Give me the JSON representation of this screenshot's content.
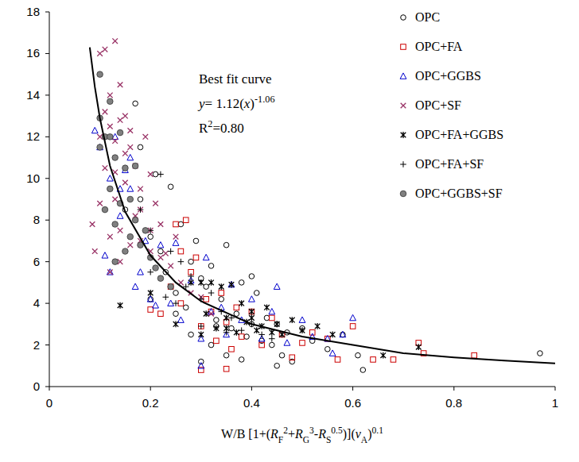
{
  "chart_data": {
    "type": "scatter",
    "x_label": [
      {
        "text": "W/B [1+("
      },
      {
        "text": "R",
        "style": "italic"
      },
      {
        "text": "F",
        "style": "sub"
      },
      {
        "text": "2",
        "style": "sup"
      },
      {
        "text": "+"
      },
      {
        "text": "R",
        "style": "italic"
      },
      {
        "text": "G",
        "style": "sub"
      },
      {
        "text": "3",
        "style": "sup"
      },
      {
        "text": "-"
      },
      {
        "text": "R",
        "style": "italic"
      },
      {
        "text": "S",
        "style": "sub"
      },
      {
        "text": "0.5",
        "style": "sup"
      },
      {
        "text": ")]("
      },
      {
        "text": "v",
        "style": "italic"
      },
      {
        "text": "A",
        "style": "sub"
      },
      {
        "text": ")"
      },
      {
        "text": "0.1",
        "style": "sup"
      }
    ],
    "annotations": [
      [
        {
          "text": "Best fit curve"
        }
      ],
      [
        {
          "text": "y",
          "style": "italic"
        },
        {
          "text": "= 1.12("
        },
        {
          "text": "x",
          "style": "italic"
        },
        {
          "text": ")"
        },
        {
          "text": "-1.06",
          "style": "sup"
        }
      ],
      [
        {
          "text": "R"
        },
        {
          "text": "2",
          "style": "sup"
        },
        {
          "text": "=0.80"
        }
      ]
    ],
    "xlim": [
      0,
      1
    ],
    "xticks": [
      0,
      0.2,
      0.4,
      0.6,
      0.8,
      1
    ],
    "ylim": [
      0,
      18
    ],
    "yticks": [
      0,
      2,
      4,
      6,
      8,
      10,
      12,
      14,
      16,
      18
    ],
    "grid": false,
    "legend": "top-right",
    "series": [
      {
        "name": "OPC",
        "color": "#000000",
        "marker": "circle",
        "x": [
          0.15,
          0.17,
          0.18,
          0.2,
          0.21,
          0.22,
          0.23,
          0.24,
          0.25,
          0.26,
          0.27,
          0.28,
          0.29,
          0.3,
          0.31,
          0.32,
          0.33,
          0.34,
          0.35,
          0.36,
          0.37,
          0.38,
          0.39,
          0.4,
          0.41,
          0.42,
          0.43,
          0.44,
          0.45,
          0.46,
          0.47,
          0.48,
          0.5,
          0.52,
          0.55,
          0.58,
          0.61,
          0.62,
          0.97,
          0.3,
          0.32,
          0.35,
          0.38,
          0.2,
          0.18,
          0.25,
          0.28,
          0.4,
          0.45,
          0.33
        ],
        "values": [
          8.5,
          13.6,
          9.0,
          7.2,
          10.2,
          6.5,
          5.5,
          9.6,
          4.5,
          7.8,
          3.8,
          6.0,
          7.0,
          5.2,
          4.8,
          5.8,
          3.2,
          4.2,
          6.8,
          2.8,
          3.5,
          5.0,
          2.4,
          3.0,
          4.5,
          2.2,
          3.3,
          2.0,
          3.0,
          1.5,
          2.6,
          1.2,
          2.8,
          2.2,
          1.8,
          2.5,
          1.5,
          0.8,
          1.6,
          1.2,
          2.0,
          1.5,
          1.3,
          4.2,
          11.5,
          3.5,
          2.5,
          5.3,
          1.0,
          2.9
        ]
      },
      {
        "name": "OPC+FA",
        "color": "#cc0000",
        "marker": "square",
        "x": [
          0.2,
          0.22,
          0.24,
          0.25,
          0.26,
          0.27,
          0.28,
          0.3,
          0.31,
          0.32,
          0.33,
          0.34,
          0.35,
          0.36,
          0.37,
          0.38,
          0.4,
          0.42,
          0.44,
          0.46,
          0.48,
          0.5,
          0.52,
          0.55,
          0.57,
          0.6,
          0.64,
          0.68,
          0.73,
          0.74,
          0.84,
          0.29,
          0.3,
          0.26,
          0.35
        ],
        "values": [
          3.7,
          3.5,
          4.8,
          7.8,
          6.5,
          8.0,
          5.5,
          0.8,
          4.2,
          3.6,
          2.2,
          4.5,
          3.1,
          1.8,
          3.8,
          2.4,
          3.6,
          2.0,
          3.3,
          2.5,
          1.4,
          2.1,
          2.6,
          2.3,
          1.3,
          2.9,
          1.3,
          1.3,
          2.1,
          1.6,
          1.5,
          6.2,
          2.9,
          4.0,
          0.85
        ]
      },
      {
        "name": "OPC+GGBS",
        "color": "#0000cc",
        "marker": "triangle",
        "x": [
          0.09,
          0.1,
          0.11,
          0.12,
          0.13,
          0.14,
          0.15,
          0.16,
          0.17,
          0.18,
          0.19,
          0.2,
          0.21,
          0.22,
          0.24,
          0.25,
          0.26,
          0.28,
          0.3,
          0.31,
          0.32,
          0.34,
          0.35,
          0.36,
          0.38,
          0.4,
          0.42,
          0.44,
          0.45,
          0.47,
          0.5,
          0.52,
          0.55,
          0.56,
          0.58,
          0.6,
          0.12,
          0.14,
          0.16,
          0.3
        ],
        "values": [
          12.3,
          11.5,
          6.3,
          10.0,
          12.0,
          8.2,
          10.4,
          9.5,
          4.8,
          5.5,
          7.0,
          4.2,
          3.9,
          6.8,
          4.0,
          6.9,
          3.2,
          5.1,
          1.0,
          6.2,
          3.6,
          3.8,
          2.5,
          4.9,
          3.2,
          4.2,
          2.3,
          3.6,
          4.8,
          2.1,
          3.2,
          2.4,
          2.3,
          1.6,
          2.5,
          3.3,
          5.5,
          9.5,
          11.0,
          2.3
        ]
      },
      {
        "name": "OPC+SF",
        "color": "#993366",
        "marker": "x",
        "x": [
          0.085,
          0.09,
          0.1,
          0.1,
          0.11,
          0.11,
          0.12,
          0.12,
          0.12,
          0.13,
          0.13,
          0.13,
          0.14,
          0.14,
          0.14,
          0.15,
          0.15,
          0.16,
          0.16,
          0.17,
          0.17,
          0.18,
          0.18,
          0.19,
          0.2,
          0.2,
          0.21,
          0.22,
          0.23,
          0.24,
          0.25,
          0.26,
          0.28,
          0.3,
          0.32,
          0.1,
          0.11,
          0.12,
          0.13,
          0.14,
          0.15,
          0.16,
          0.18,
          0.2,
          0.22
        ],
        "values": [
          7.8,
          6.5,
          16.0,
          8.8,
          16.2,
          10.5,
          14.0,
          5.5,
          12.5,
          16.6,
          9.0,
          11.8,
          14.5,
          7.5,
          12.8,
          13.0,
          9.8,
          11.5,
          6.8,
          10.6,
          8.2,
          9.5,
          7.0,
          12.0,
          10.2,
          6.5,
          8.8,
          7.8,
          6.4,
          5.8,
          7.2,
          5.0,
          4.5,
          4.3,
          3.5,
          12.0,
          13.2,
          7.2,
          10.3,
          6.0,
          11.2,
          12.3,
          8.5,
          7.5,
          6.2
        ]
      },
      {
        "name": "OPC+FA+GGBS",
        "color": "#000000",
        "marker": "asterisk",
        "x": [
          0.14,
          0.2,
          0.25,
          0.28,
          0.3,
          0.31,
          0.32,
          0.33,
          0.34,
          0.35,
          0.36,
          0.37,
          0.38,
          0.39,
          0.4,
          0.41,
          0.42,
          0.43,
          0.44,
          0.45,
          0.46,
          0.48,
          0.5,
          0.53,
          0.56,
          0.66,
          0.73,
          0.3,
          0.35,
          0.4
        ],
        "values": [
          3.9,
          4.5,
          3.0,
          5.0,
          5.0,
          3.5,
          5.0,
          2.8,
          4.8,
          3.3,
          4.9,
          2.6,
          4.0,
          3.1,
          3.6,
          2.7,
          2.9,
          3.8,
          2.6,
          3.0,
          2.5,
          3.2,
          2.7,
          2.9,
          2.5,
          1.5,
          1.9,
          2.5,
          2.8,
          3.3
        ]
      },
      {
        "name": "OPC+FA+SF",
        "color": "#000000",
        "marker": "plus",
        "x": [
          0.18,
          0.2,
          0.22,
          0.24,
          0.26,
          0.28,
          0.3,
          0.32,
          0.34,
          0.36,
          0.38,
          0.4,
          0.42,
          0.44,
          0.2,
          0.23,
          0.25,
          0.3,
          0.27,
          0.35
        ],
        "values": [
          8.5,
          7.5,
          10.2,
          6.5,
          6.0,
          5.3,
          4.2,
          4.5,
          3.6,
          3.3,
          2.7,
          3.0,
          2.5,
          2.3,
          5.5,
          4.3,
          4.0,
          2.9,
          4.8,
          2.6
        ]
      },
      {
        "name": "OPC+GGBS+SF",
        "color": "#808080",
        "marker": "filled_circle",
        "x": [
          0.1,
          0.1,
          0.11,
          0.11,
          0.12,
          0.12,
          0.13,
          0.13,
          0.14,
          0.14,
          0.15,
          0.15,
          0.16,
          0.16,
          0.17,
          0.18,
          0.19,
          0.2,
          0.21,
          0.22,
          0.24,
          0.12,
          0.1,
          0.13,
          0.17
        ],
        "values": [
          15.0,
          12.9,
          12.0,
          8.5,
          13.7,
          9.5,
          11.0,
          7.8,
          12.2,
          8.8,
          10.5,
          6.5,
          9.0,
          7.2,
          8.0,
          6.8,
          7.5,
          6.2,
          5.7,
          5.2,
          4.8,
          12.0,
          11.5,
          6.0,
          10.6
        ]
      },
      {
        "type": "line",
        "color": "#000000",
        "line_style": "solid",
        "x": [
          0.08,
          0.09,
          0.1,
          0.12,
          0.15,
          0.2,
          0.25,
          0.3,
          0.4,
          0.5,
          0.6,
          0.7,
          0.8,
          0.9,
          1.0
        ],
        "values": [
          16.3,
          14.4,
          12.9,
          10.6,
          8.4,
          6.3,
          5.0,
          4.1,
          3.0,
          2.4,
          2.0,
          1.6,
          1.4,
          1.25,
          1.12
        ]
      }
    ]
  }
}
